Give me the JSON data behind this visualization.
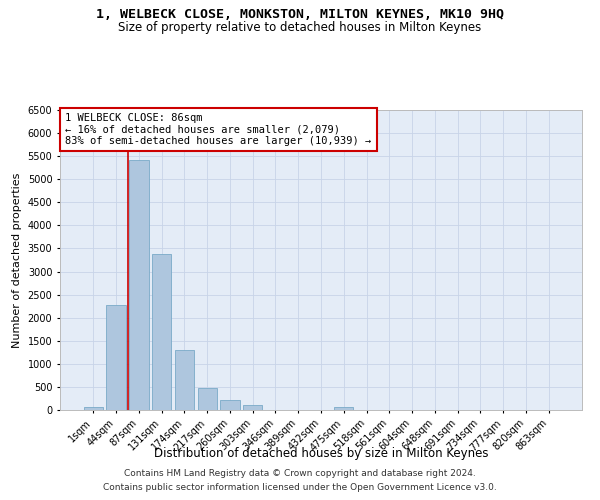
{
  "title": "1, WELBECK CLOSE, MONKSTON, MILTON KEYNES, MK10 9HQ",
  "subtitle": "Size of property relative to detached houses in Milton Keynes",
  "xlabel": "Distribution of detached houses by size in Milton Keynes",
  "ylabel": "Number of detached properties",
  "annotation_line1": "1 WELBECK CLOSE: 86sqm",
  "annotation_line2": "← 16% of detached houses are smaller (2,079)",
  "annotation_line3": "83% of semi-detached houses are larger (10,939) →",
  "footer_line1": "Contains HM Land Registry data © Crown copyright and database right 2024.",
  "footer_line2": "Contains public sector information licensed under the Open Government Licence v3.0.",
  "categories": [
    "1sqm",
    "44sqm",
    "87sqm",
    "131sqm",
    "174sqm",
    "217sqm",
    "260sqm",
    "303sqm",
    "346sqm",
    "389sqm",
    "432sqm",
    "475sqm",
    "518sqm",
    "561sqm",
    "604sqm",
    "648sqm",
    "691sqm",
    "734sqm",
    "777sqm",
    "820sqm",
    "863sqm"
  ],
  "values": [
    75,
    2280,
    5420,
    3370,
    1290,
    480,
    220,
    100,
    0,
    0,
    0,
    65,
    0,
    0,
    0,
    0,
    0,
    0,
    0,
    0,
    0
  ],
  "bar_color": "#aec6de",
  "bar_edgecolor": "#7aaac8",
  "vline_x": 1.5,
  "vline_color": "#cc0000",
  "vline_linewidth": 1.2,
  "annotation_box_edgecolor": "#cc0000",
  "ylim": [
    0,
    6500
  ],
  "yticks": [
    0,
    500,
    1000,
    1500,
    2000,
    2500,
    3000,
    3500,
    4000,
    4500,
    5000,
    5500,
    6000,
    6500
  ],
  "grid_color": "#c8d4e8",
  "background_color": "#e4ecf7",
  "title_fontsize": 9.5,
  "subtitle_fontsize": 8.5,
  "xlabel_fontsize": 8.5,
  "ylabel_fontsize": 8,
  "tick_fontsize": 7,
  "annotation_fontsize": 7.5,
  "footer_fontsize": 6.5
}
